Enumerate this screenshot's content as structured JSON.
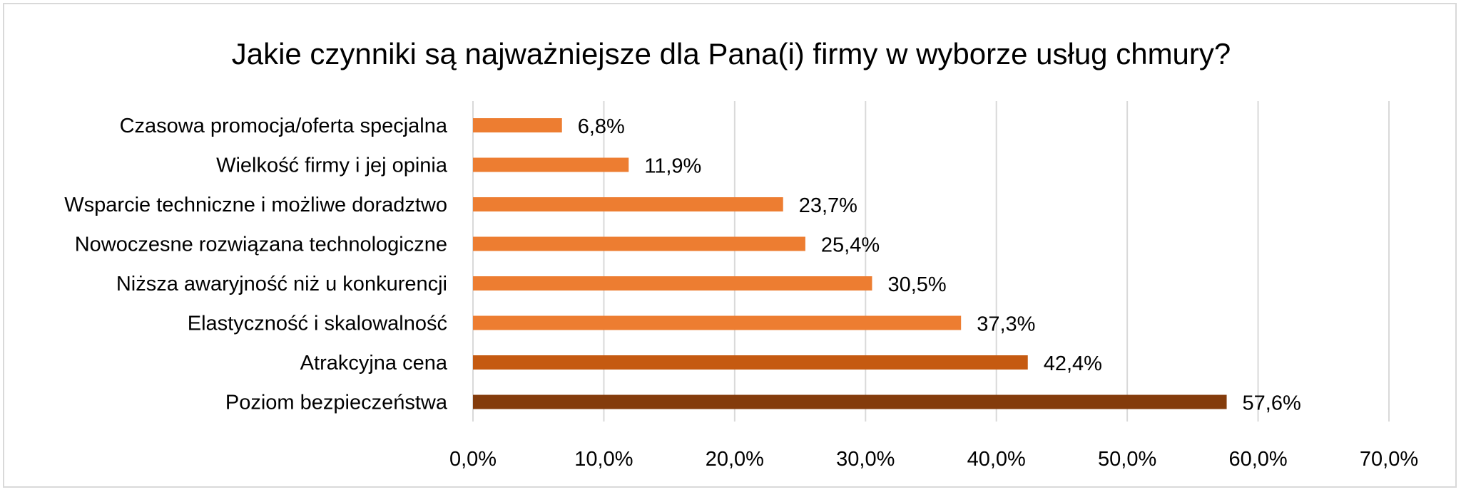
{
  "chart_data": {
    "type": "bar",
    "orientation": "horizontal",
    "title": "Jakie czynniki są najważniejsze dla Pana(i) firmy w wyborze usług chmury?",
    "categories": [
      "Czasowa promocja/oferta specjalna",
      "Wielkość firmy i jej opinia",
      "Wsparcie techniczne i możliwe doradztwo",
      "Nowoczesne rozwiązana technologiczne",
      "Niższa awaryjność niż u konkurencji",
      "Elastyczność i skalowalność",
      "Atrakcyjna cena",
      "Poziom bezpieczeństwa"
    ],
    "values": [
      6.8,
      11.9,
      23.7,
      25.4,
      30.5,
      37.3,
      42.4,
      57.6
    ],
    "data_labels": [
      "6,8%",
      "11,9%",
      "23,7%",
      "25,4%",
      "30,5%",
      "37,3%",
      "42,4%",
      "57,6%"
    ],
    "bar_colors": [
      "#ed7d31",
      "#ed7d31",
      "#ed7d31",
      "#ed7d31",
      "#ed7d31",
      "#ed7d31",
      "#c55a11",
      "#843c0c"
    ],
    "xlim": [
      0,
      70
    ],
    "x_ticks": [
      0,
      10,
      20,
      30,
      40,
      50,
      60,
      70
    ],
    "x_tick_labels": [
      "0,0%",
      "10,0%",
      "20,0%",
      "30,0%",
      "40,0%",
      "50,0%",
      "60,0%",
      "70,0%"
    ],
    "xlabel": "",
    "ylabel": "",
    "grid": "vertical",
    "legend": "none"
  }
}
